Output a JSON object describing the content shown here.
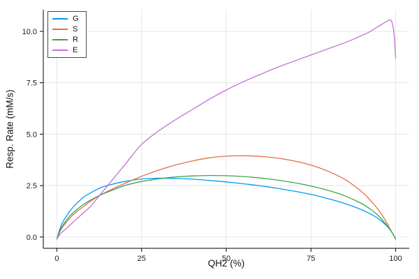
{
  "figure": {
    "background": "#ffffff"
  },
  "chart_data": {
    "type": "line",
    "title": "",
    "xlabel": "QH2 (%)",
    "ylabel": "Resp. Rate (mM/s)",
    "xlim": [
      -4,
      104
    ],
    "ylim": [
      -0.55,
      11.05
    ],
    "grid": true,
    "legend_position": "top-left",
    "xticks": {
      "values": [
        0,
        25,
        50,
        75,
        100
      ],
      "labels": [
        "0",
        "25",
        "50",
        "75",
        "100"
      ]
    },
    "yticks": {
      "values": [
        0.0,
        2.5,
        5.0,
        7.5,
        10.0
      ],
      "labels": [
        "0.0",
        "2.5",
        "5.0",
        "7.5",
        "10.0"
      ]
    },
    "series": [
      {
        "name": "G",
        "color": "#009af9",
        "x": [
          0,
          1,
          2,
          3,
          4,
          6,
          8,
          10,
          13,
          16,
          20,
          25,
          30,
          35,
          40,
          45,
          50,
          55,
          60,
          65,
          70,
          75,
          80,
          85,
          90,
          93,
          95,
          97,
          98,
          99,
          100
        ],
        "y": [
          -0.1,
          0.45,
          0.8,
          1.05,
          1.3,
          1.65,
          1.95,
          2.15,
          2.4,
          2.55,
          2.7,
          2.82,
          2.86,
          2.85,
          2.81,
          2.75,
          2.68,
          2.59,
          2.49,
          2.37,
          2.23,
          2.07,
          1.87,
          1.63,
          1.32,
          1.08,
          0.88,
          0.6,
          0.42,
          0.2,
          -0.1
        ]
      },
      {
        "name": "S",
        "color": "#e26f46",
        "x": [
          0,
          1,
          2,
          3,
          4,
          6,
          8,
          10,
          13,
          16,
          20,
          25,
          30,
          35,
          40,
          45,
          50,
          55,
          60,
          65,
          70,
          75,
          80,
          85,
          90,
          93,
          95,
          97,
          98,
          99,
          100
        ],
        "y": [
          -0.1,
          0.3,
          0.55,
          0.75,
          0.95,
          1.25,
          1.5,
          1.75,
          2.05,
          2.3,
          2.6,
          2.95,
          3.25,
          3.5,
          3.7,
          3.85,
          3.93,
          3.95,
          3.92,
          3.84,
          3.7,
          3.5,
          3.2,
          2.8,
          2.2,
          1.7,
          1.3,
          0.8,
          0.5,
          0.2,
          -0.1
        ]
      },
      {
        "name": "R",
        "color": "#3da44d",
        "x": [
          0,
          1,
          2,
          3,
          4,
          6,
          8,
          10,
          13,
          16,
          20,
          25,
          30,
          35,
          40,
          45,
          50,
          55,
          60,
          65,
          70,
          75,
          80,
          85,
          90,
          93,
          95,
          97,
          98,
          99,
          100
        ],
        "y": [
          -0.1,
          0.35,
          0.62,
          0.85,
          1.05,
          1.35,
          1.6,
          1.8,
          2.05,
          2.25,
          2.5,
          2.7,
          2.83,
          2.92,
          2.97,
          2.99,
          2.98,
          2.94,
          2.87,
          2.77,
          2.64,
          2.48,
          2.27,
          2.0,
          1.62,
          1.3,
          1.02,
          0.65,
          0.44,
          0.2,
          -0.1
        ]
      },
      {
        "name": "E",
        "color": "#c271d4",
        "x": [
          0,
          1,
          2,
          3,
          4,
          6,
          8,
          10,
          13,
          16,
          20,
          25,
          30,
          35,
          40,
          45,
          50,
          55,
          60,
          65,
          70,
          75,
          80,
          85,
          88,
          90,
          92,
          94,
          95,
          96,
          97,
          97.5,
          98,
          98.5,
          99,
          99.5,
          100
        ],
        "y": [
          -0.1,
          0.15,
          0.3,
          0.45,
          0.6,
          0.9,
          1.2,
          1.5,
          2.1,
          2.7,
          3.5,
          4.5,
          5.15,
          5.7,
          6.2,
          6.7,
          7.15,
          7.55,
          7.9,
          8.25,
          8.55,
          8.85,
          9.15,
          9.45,
          9.65,
          9.8,
          9.95,
          10.15,
          10.25,
          10.35,
          10.45,
          10.5,
          10.55,
          10.55,
          10.4,
          9.9,
          8.7
        ]
      }
    ]
  }
}
